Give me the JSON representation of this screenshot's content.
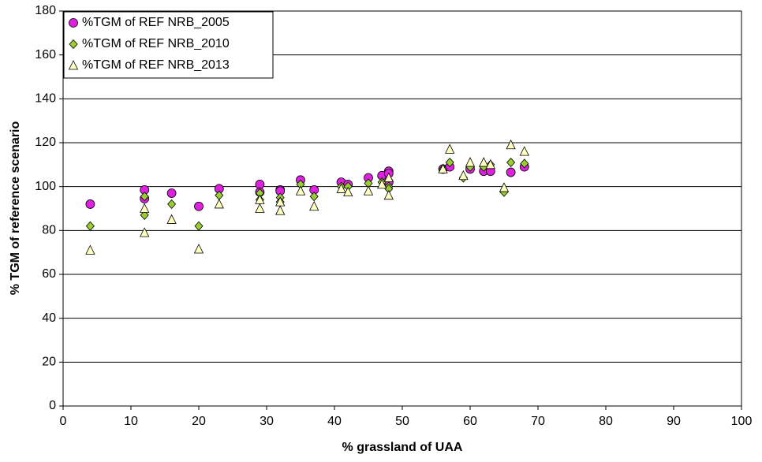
{
  "chart_data": {
    "type": "scatter",
    "x_label": "% grassland of UAA",
    "y_label": "% TGM of reference scenario",
    "xlim": [
      0,
      100
    ],
    "xticks": [
      0,
      10,
      20,
      30,
      40,
      50,
      60,
      70,
      80,
      90,
      100
    ],
    "ylim": [
      0,
      180
    ],
    "yticks": [
      0,
      20,
      40,
      60,
      80,
      100,
      120,
      140,
      160,
      180
    ],
    "grid": true,
    "legend": "top-left",
    "series": [
      {
        "name": "%TGM of REF NRB_2005",
        "color": "#e020e0",
        "marker": "circle",
        "x": [
          4,
          12,
          12,
          16,
          20,
          23,
          29,
          29,
          32,
          32,
          35,
          37,
          41,
          42,
          45,
          47,
          48,
          48,
          48,
          56,
          57,
          60,
          62,
          63,
          66,
          68
        ],
        "values": [
          92,
          98.5,
          94.5,
          97,
          91,
          99,
          101,
          97.5,
          98.5,
          98,
          103,
          98.5,
          102,
          101,
          104,
          105,
          107,
          106,
          102,
          108,
          109,
          108,
          107,
          107,
          106.5,
          109
        ]
      },
      {
        "name": "%TGM of REF NRB_2010",
        "color": "#9acd32",
        "marker": "diamond",
        "x": [
          4,
          12,
          12,
          16,
          20,
          23,
          29,
          29,
          32,
          32,
          35,
          37,
          41,
          42,
          45,
          47,
          48,
          48,
          56,
          57,
          59,
          60,
          62,
          63,
          65,
          66,
          68
        ],
        "values": [
          82,
          95.5,
          87,
          92,
          82,
          96,
          97,
          94,
          95,
          93,
          101,
          95.5,
          100,
          100,
          101.5,
          102,
          100,
          99,
          108,
          111,
          104,
          109,
          109,
          110,
          97.5,
          111,
          110.5
        ]
      },
      {
        "name": "%TGM of REF NRB_2013",
        "color": "#ffffc0",
        "marker": "triangle",
        "x": [
          4,
          12,
          12,
          16,
          20,
          23,
          29,
          29,
          32,
          32,
          35,
          37,
          41,
          42,
          45,
          47,
          48,
          48,
          56,
          57,
          59,
          60,
          62,
          63,
          65,
          66,
          68
        ],
        "values": [
          71,
          90,
          79,
          85,
          71.5,
          92,
          94,
          90,
          93,
          89,
          98,
          91,
          99,
          97.5,
          98,
          101,
          104,
          96,
          108,
          117,
          105,
          111,
          111,
          110,
          99.5,
          119,
          116
        ]
      }
    ]
  }
}
